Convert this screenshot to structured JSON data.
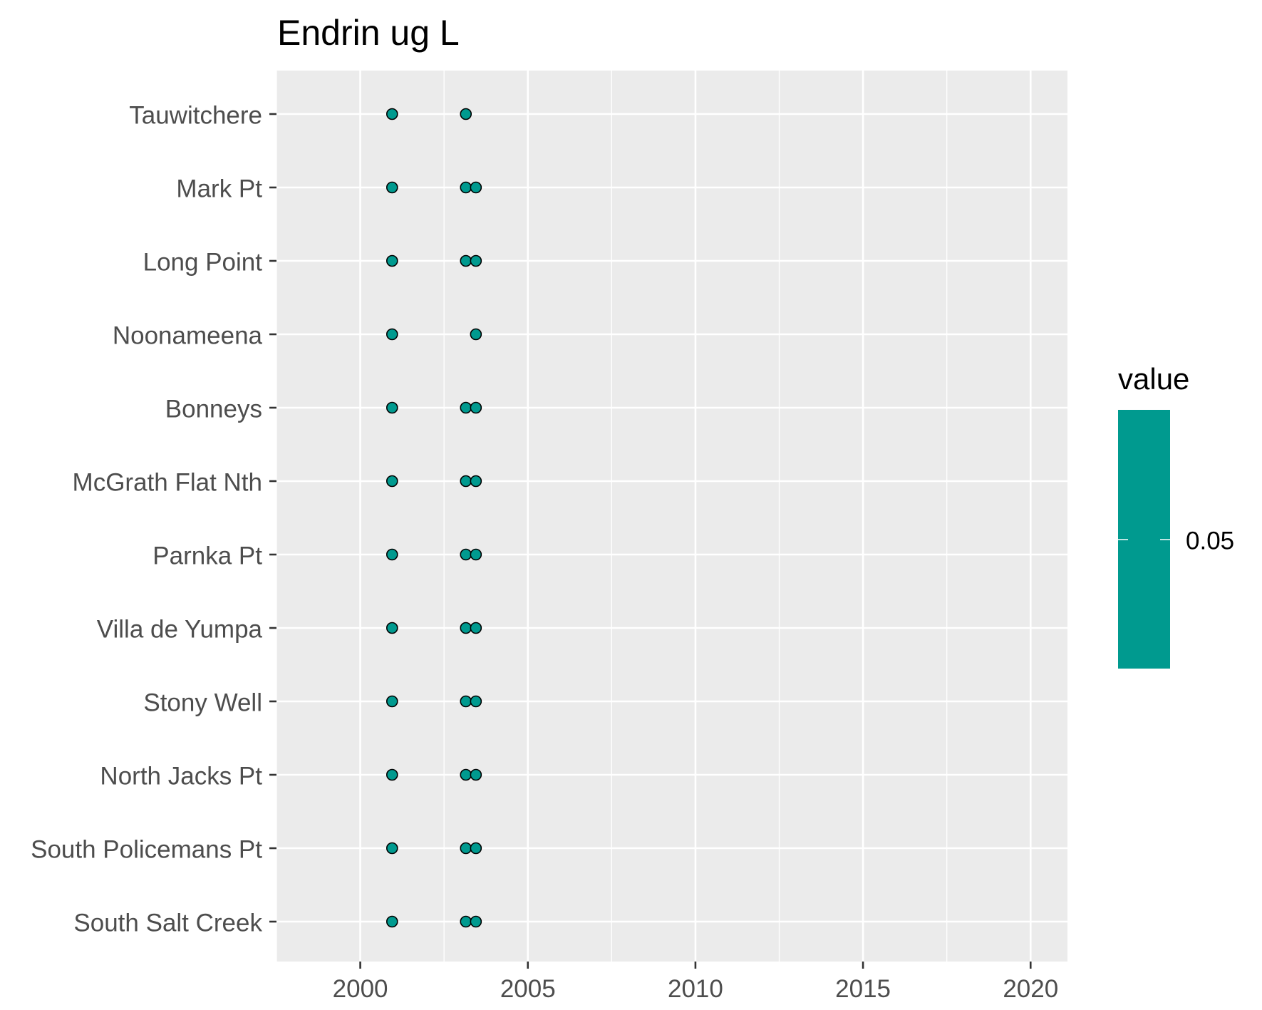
{
  "chart_data": {
    "type": "scatter",
    "title": "Endrin ug L",
    "xlabel": "",
    "ylabel": "",
    "xlim": [
      1997.5,
      2021.1
    ],
    "x_ticks": [
      "2000",
      "2005",
      "2010",
      "2015",
      "2020"
    ],
    "x_tick_values": [
      2000,
      2005,
      2010,
      2015,
      2020
    ],
    "x_minor_values": [
      1997.5,
      2002.5,
      2007.5,
      2012.5,
      2017.5
    ],
    "categories": [
      "Tauwitchere",
      "Mark Pt",
      "Long Point",
      "Noonameena",
      "Bonneys",
      "McGrath Flat Nth",
      "Parnka Pt",
      "Villa de Yumpa",
      "Stony Well",
      "North Jacks Pt",
      "South Policemans Pt",
      "South Salt Creek"
    ],
    "point_color": "#009A8F",
    "point_outline": "#000000",
    "points": [
      {
        "site": "Tauwitchere",
        "x": 2000.95,
        "value": 0.05
      },
      {
        "site": "Tauwitchere",
        "x": 2003.15,
        "value": 0.05
      },
      {
        "site": "Mark Pt",
        "x": 2000.95,
        "value": 0.05
      },
      {
        "site": "Mark Pt",
        "x": 2003.15,
        "value": 0.05
      },
      {
        "site": "Mark Pt",
        "x": 2003.45,
        "value": 0.05
      },
      {
        "site": "Long Point",
        "x": 2000.95,
        "value": 0.05
      },
      {
        "site": "Long Point",
        "x": 2003.15,
        "value": 0.05
      },
      {
        "site": "Long Point",
        "x": 2003.45,
        "value": 0.05
      },
      {
        "site": "Noonameena",
        "x": 2000.95,
        "value": 0.05
      },
      {
        "site": "Noonameena",
        "x": 2003.45,
        "value": 0.05
      },
      {
        "site": "Bonneys",
        "x": 2000.95,
        "value": 0.05
      },
      {
        "site": "Bonneys",
        "x": 2003.15,
        "value": 0.05
      },
      {
        "site": "Bonneys",
        "x": 2003.45,
        "value": 0.05
      },
      {
        "site": "McGrath Flat Nth",
        "x": 2000.95,
        "value": 0.05
      },
      {
        "site": "McGrath Flat Nth",
        "x": 2003.15,
        "value": 0.05
      },
      {
        "site": "McGrath Flat Nth",
        "x": 2003.45,
        "value": 0.05
      },
      {
        "site": "Parnka Pt",
        "x": 2000.95,
        "value": 0.05
      },
      {
        "site": "Parnka Pt",
        "x": 2003.15,
        "value": 0.05
      },
      {
        "site": "Parnka Pt",
        "x": 2003.45,
        "value": 0.05
      },
      {
        "site": "Villa de Yumpa",
        "x": 2000.95,
        "value": 0.05
      },
      {
        "site": "Villa de Yumpa",
        "x": 2003.15,
        "value": 0.05
      },
      {
        "site": "Villa de Yumpa",
        "x": 2003.45,
        "value": 0.05
      },
      {
        "site": "Stony Well",
        "x": 2000.95,
        "value": 0.05
      },
      {
        "site": "Stony Well",
        "x": 2003.15,
        "value": 0.05
      },
      {
        "site": "Stony Well",
        "x": 2003.45,
        "value": 0.05
      },
      {
        "site": "North Jacks Pt",
        "x": 2000.95,
        "value": 0.05
      },
      {
        "site": "North Jacks Pt",
        "x": 2003.15,
        "value": 0.05
      },
      {
        "site": "North Jacks Pt",
        "x": 2003.45,
        "value": 0.05
      },
      {
        "site": "South Policemans Pt",
        "x": 2000.95,
        "value": 0.05
      },
      {
        "site": "South Policemans Pt",
        "x": 2003.15,
        "value": 0.05
      },
      {
        "site": "South Policemans Pt",
        "x": 2003.45,
        "value": 0.05
      },
      {
        "site": "South Salt Creek",
        "x": 2000.95,
        "value": 0.05
      },
      {
        "site": "South Salt Creek",
        "x": 2003.15,
        "value": 0.05
      },
      {
        "site": "South Salt Creek",
        "x": 2003.45,
        "value": 0.05
      }
    ],
    "grid": true,
    "legend": {
      "title": "value",
      "position": "right",
      "type": "colorbar",
      "color": "#009A8F",
      "labels": [
        "0.05"
      ]
    }
  }
}
